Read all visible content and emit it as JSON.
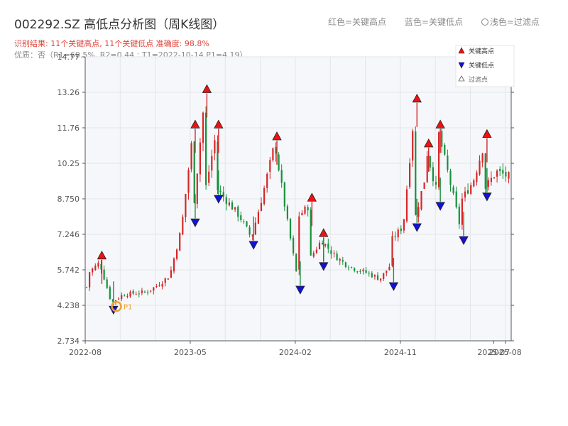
{
  "header": {
    "title": "002292.SZ 高低点分析图（周K线图）",
    "legend_red": "红色=关键高点",
    "legend_blue": "蓝色=关键低点",
    "legend_light": "浅色=过滤点",
    "result_line": "识别结果: 11个关键高点, 11个关键低点   准确度: 98.8%",
    "quality_line": "优质：否（R1=60.5%, R2=0.44 ; T1=2022-10-14 P1=4.19）"
  },
  "colors": {
    "up": "#d62728",
    "down": "#17913c",
    "high_marker": "#ee1111",
    "low_marker": "#1111dd",
    "highlight": "#f0a030",
    "plot_bg": "#f5f7fa",
    "grid": "#e2e6ea"
  },
  "chart_data": {
    "type": "candlestick",
    "title": "002292.SZ 高低点分析图（周K线图）",
    "xlabel": "",
    "ylabel": "",
    "ylim": [
      2.734,
      14.77
    ],
    "y_ticks": [
      "2.734",
      "4.238",
      "5.742",
      "7.246",
      "8.750",
      "10.25",
      "11.76",
      "13.26",
      "14.77"
    ],
    "x_ticks": [
      "2022-08",
      "2023-05",
      "2024-02",
      "2024-11",
      "2025-07",
      "2025-08"
    ],
    "grid": true,
    "legend_position": "top-right",
    "legend": [
      "关键高点",
      "关键低点",
      "过滤点"
    ],
    "trend_path": [
      [
        "2022-08",
        5.0
      ],
      [
        "2022-08",
        5.6
      ],
      [
        "2022-09",
        6.05
      ],
      [
        "2022-10",
        4.35
      ],
      [
        "2022-11",
        4.7
      ],
      [
        "2022-12",
        4.75
      ],
      [
        "2023-01",
        4.8
      ],
      [
        "2023-02",
        5.1
      ],
      [
        "2023-03",
        5.5
      ],
      [
        "2023-04",
        7.5
      ],
      [
        "2023-05",
        11.6
      ],
      [
        "2023-05",
        8.2
      ],
      [
        "2023-06",
        13.1
      ],
      [
        "2023-06",
        9.0
      ],
      [
        "2023-07",
        11.6
      ],
      [
        "2023-07",
        9.2
      ],
      [
        "2023-08",
        8.6
      ],
      [
        "2023-09",
        8.0
      ],
      [
        "2023-10",
        7.1
      ],
      [
        "2023-11",
        9.0
      ],
      [
        "2023-12",
        11.1
      ],
      [
        "2024-01",
        8.0
      ],
      [
        "2024-02",
        5.2
      ],
      [
        "2024-02",
        8.0
      ],
      [
        "2024-03",
        8.5
      ],
      [
        "2024-03",
        6.2
      ],
      [
        "2024-04",
        7.0
      ],
      [
        "2024-05",
        6.4
      ],
      [
        "2024-06",
        6.0
      ],
      [
        "2024-07",
        5.75
      ],
      [
        "2024-08",
        5.6
      ],
      [
        "2024-09",
        5.35
      ],
      [
        "2024-10",
        6.0
      ],
      [
        "2024-10",
        7.0
      ],
      [
        "2024-11",
        7.6
      ],
      [
        "2024-12",
        12.7
      ],
      [
        "2024-12",
        7.9
      ],
      [
        "2025-01",
        9.9
      ],
      [
        "2025-01",
        10.8
      ],
      [
        "2025-02",
        8.8
      ],
      [
        "2025-02",
        11.6
      ],
      [
        "2025-03",
        9.5
      ],
      [
        "2025-04",
        7.3
      ],
      [
        "2025-04",
        8.7
      ],
      [
        "2025-05",
        9.5
      ],
      [
        "2025-06",
        11.2
      ],
      [
        "2025-06",
        9.2
      ],
      [
        "2025-07",
        9.9
      ],
      [
        "2025-08",
        9.7
      ]
    ],
    "key_highs": [
      {
        "date": "2022-09",
        "price": 6.05
      },
      {
        "date": "2023-05",
        "price": 11.6
      },
      {
        "date": "2023-06",
        "price": 13.1
      },
      {
        "date": "2023-07",
        "price": 11.6
      },
      {
        "date": "2023-12",
        "price": 11.1
      },
      {
        "date": "2024-03",
        "price": 8.5
      },
      {
        "date": "2024-04",
        "price": 7.0
      },
      {
        "date": "2024-12",
        "price": 12.7
      },
      {
        "date": "2025-01",
        "price": 10.8
      },
      {
        "date": "2025-02",
        "price": 11.6
      },
      {
        "date": "2025-06",
        "price": 11.2
      }
    ],
    "key_lows": [
      {
        "date": "2022-10",
        "price": 4.35
      },
      {
        "date": "2023-05",
        "price": 8.05
      },
      {
        "date": "2023-07",
        "price": 9.05
      },
      {
        "date": "2023-10",
        "price": 7.1
      },
      {
        "date": "2024-02",
        "price": 5.2
      },
      {
        "date": "2024-04",
        "price": 6.2
      },
      {
        "date": "2024-10",
        "price": 5.35
      },
      {
        "date": "2024-12",
        "price": 7.85
      },
      {
        "date": "2025-02",
        "price": 8.75
      },
      {
        "date": "2025-04",
        "price": 7.3
      },
      {
        "date": "2025-06",
        "price": 9.15
      }
    ],
    "highlight_point": {
      "date": "2022-10-14",
      "price": 4.19,
      "label": "P1"
    }
  }
}
